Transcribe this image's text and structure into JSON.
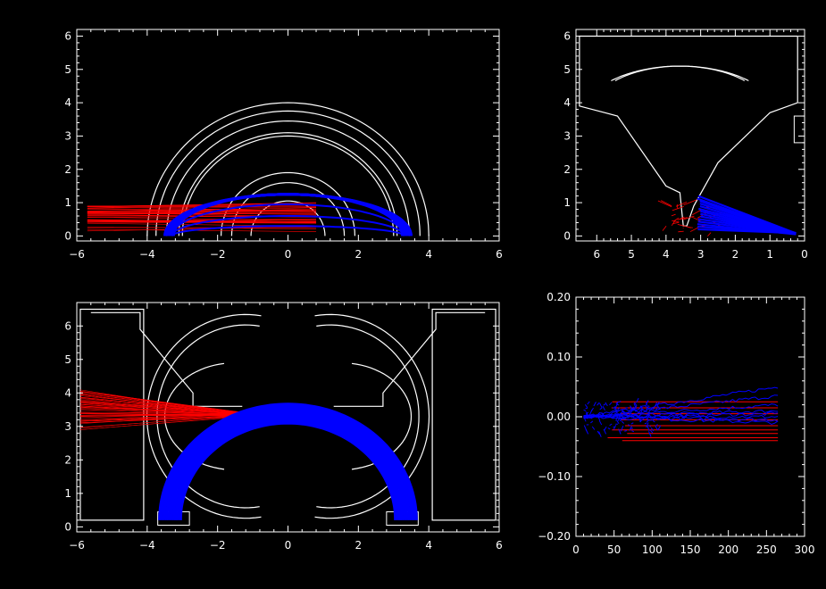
{
  "chart_data": [
    {
      "id": "top-left",
      "type": "line",
      "xlim": [
        -6,
        6
      ],
      "ylim": [
        -0.15,
        6.2
      ],
      "x_ticks": [
        -6,
        -4,
        -2,
        0,
        2,
        4,
        6
      ],
      "y_ticks": [
        0,
        1,
        2,
        3,
        4,
        5,
        6
      ],
      "tick_labels_x": [
        "−6",
        "−4",
        "−2",
        "0",
        "2",
        "4",
        "6"
      ],
      "tick_labels_y": [
        "0",
        "1",
        "2",
        "3",
        "4",
        "5",
        "6"
      ],
      "geometry": {
        "arcs": [
          {
            "cx": 0,
            "cy": 0,
            "r": 4.0
          },
          {
            "cx": 0,
            "cy": 0,
            "r": 3.75
          },
          {
            "cx": 0,
            "cy": 0,
            "r": 3.45
          },
          {
            "cx": 0,
            "cy": 0,
            "r": 3.1
          },
          {
            "cx": 0,
            "cy": 0,
            "r": 3.0
          },
          {
            "cx": 0,
            "cy": 0,
            "r": 1.9
          },
          {
            "cx": 0,
            "cy": 0,
            "r": 1.6
          },
          {
            "cx": 0,
            "cy": 0,
            "r": 1.05
          }
        ]
      },
      "series": [
        {
          "color": "#ff0000",
          "kind": "incoming_rays",
          "x_start": -5.7,
          "x_end": 0.8,
          "y_min": 0.15,
          "y_max": 0.95
        },
        {
          "color": "#0000ff",
          "kind": "arc_band",
          "r_inner": 3.2,
          "r_outer": 3.5,
          "cy": -2.2
        }
      ]
    },
    {
      "id": "top-right",
      "type": "line",
      "xlim": [
        6.6,
        0
      ],
      "ylim": [
        -0.15,
        6.2
      ],
      "x_ticks": [
        6,
        5,
        4,
        3,
        2,
        1,
        0
      ],
      "y_ticks": [
        0,
        1,
        2,
        3,
        4,
        5,
        6
      ],
      "tick_labels_x": [
        "6",
        "5",
        "4",
        "3",
        "2",
        "1",
        "0"
      ],
      "tick_labels_y": [
        "0",
        "1",
        "2",
        "3",
        "4",
        "5",
        "6"
      ],
      "series": [
        {
          "color": "#ff0000",
          "kind": "scattered_rays",
          "x_min": 2.6,
          "x_max": 4.0,
          "y_min": 0.1,
          "y_max": 1.0
        },
        {
          "color": "#0000ff",
          "kind": "fan",
          "from": [
            3.0,
            1.2
          ],
          "to": [
            0.2,
            0.05
          ]
        }
      ]
    },
    {
      "id": "bottom-left",
      "type": "line",
      "xlim": [
        -6,
        6
      ],
      "ylim": [
        -0.15,
        6.7
      ],
      "x_ticks": [
        -6,
        -4,
        -2,
        0,
        2,
        4,
        6
      ],
      "y_ticks": [
        0,
        1,
        2,
        3,
        4,
        5,
        6
      ],
      "tick_labels_x": [
        "−6",
        "−4",
        "−2",
        "0",
        "2",
        "4",
        "6"
      ],
      "tick_labels_y": [
        "0",
        "1",
        "2",
        "3",
        "4",
        "5",
        "6"
      ],
      "series": [
        {
          "color": "#ff0000",
          "kind": "converging_rays",
          "x_start": -5.9,
          "y_min": 2.9,
          "y_max": 4.1,
          "focus": [
            -1.1,
            3.35
          ]
        },
        {
          "color": "#0000ff",
          "kind": "arc_band",
          "r_inner": 3.05,
          "r_outer": 3.65
        }
      ]
    },
    {
      "id": "bottom-right",
      "type": "line",
      "xlim": [
        0,
        300
      ],
      "ylim": [
        -0.2,
        0.2
      ],
      "x_ticks": [
        0,
        50,
        100,
        150,
        200,
        250,
        300
      ],
      "y_ticks": [
        -0.2,
        -0.1,
        0.0,
        0.1,
        0.2
      ],
      "tick_labels_x": [
        "0",
        "50",
        "100",
        "150",
        "200",
        "250",
        "300"
      ],
      "tick_labels_y": [
        "−0.20",
        "−0.10",
        "0.00",
        "0.10",
        "0.20"
      ],
      "series": [
        {
          "color": "#ff0000",
          "values_y": [
            0.025,
            0.015,
            0.005,
            -0.005,
            -0.015,
            -0.022,
            -0.028,
            -0.035,
            -0.04
          ],
          "x_range": [
            40,
            265
          ]
        },
        {
          "color": "#0000ff",
          "values_y": [
            0.05,
            0.035,
            0.02,
            0.01,
            0.005,
            0.0,
            -0.005,
            -0.01
          ],
          "x_range": [
            10,
            265
          ]
        }
      ]
    }
  ]
}
